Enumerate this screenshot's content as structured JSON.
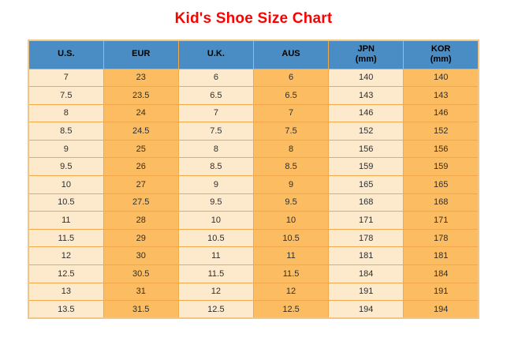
{
  "title": "Kid's Shoe Size Chart",
  "colors": {
    "header_bg": "#4a8dc4",
    "row_light": "#fdeacc",
    "row_orange": "#fbbc62",
    "border": "#f2a94b",
    "outer_border": "#f5c583",
    "title_color": "#fe0000",
    "text_color": "#2e2e2e"
  },
  "chart_data": {
    "type": "table",
    "title": "Kid's Shoe Size Chart",
    "columns": [
      {
        "label": "U.S.",
        "sub": ""
      },
      {
        "label": "EUR",
        "sub": ""
      },
      {
        "label": "U.K.",
        "sub": ""
      },
      {
        "label": "AUS",
        "sub": ""
      },
      {
        "label": "JPN",
        "sub": "(mm)"
      },
      {
        "label": "KOR",
        "sub": "(mm)"
      }
    ],
    "rows": [
      [
        "7",
        "23",
        "6",
        "6",
        "140",
        "140"
      ],
      [
        "7.5",
        "23.5",
        "6.5",
        "6.5",
        "143",
        "143"
      ],
      [
        "8",
        "24",
        "7",
        "7",
        "146",
        "146"
      ],
      [
        "8.5",
        "24.5",
        "7.5",
        "7.5",
        "152",
        "152"
      ],
      [
        "9",
        "25",
        "8",
        "8",
        "156",
        "156"
      ],
      [
        "9.5",
        "26",
        "8.5",
        "8.5",
        "159",
        "159"
      ],
      [
        "10",
        "27",
        "9",
        "9",
        "165",
        "165"
      ],
      [
        "10.5",
        "27.5",
        "9.5",
        "9.5",
        "168",
        "168"
      ],
      [
        "11",
        "28",
        "10",
        "10",
        "171",
        "171"
      ],
      [
        "11.5",
        "29",
        "10.5",
        "10.5",
        "178",
        "178"
      ],
      [
        "12",
        "30",
        "11",
        "11",
        "181",
        "181"
      ],
      [
        "12.5",
        "30.5",
        "11.5",
        "11.5",
        "184",
        "184"
      ],
      [
        "13",
        "31",
        "12",
        "12",
        "191",
        "191"
      ],
      [
        "13.5",
        "31.5",
        "12.5",
        "12.5",
        "194",
        "194"
      ]
    ]
  }
}
